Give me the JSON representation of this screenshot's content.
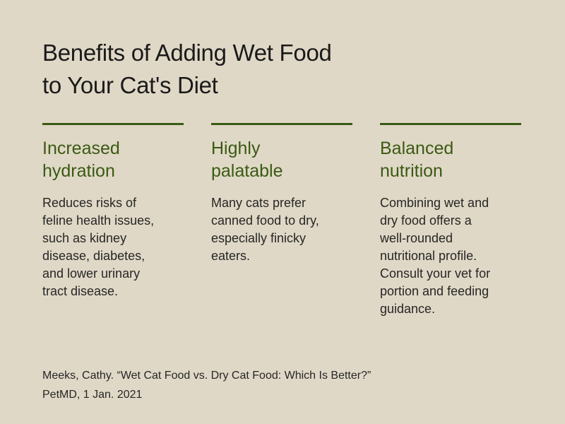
{
  "title": {
    "line1": "Benefits of Adding Wet Food",
    "line2": "to Your Cat's Diet"
  },
  "columns": [
    {
      "heading": [
        "Increased",
        "hydration"
      ],
      "body": [
        "Reduces risks of",
        "feline health issues,",
        "such as kidney",
        "disease, diabetes,",
        "and lower urinary",
        "tract disease."
      ]
    },
    {
      "heading": [
        "Highly",
        "palatable"
      ],
      "body": [
        "Many cats prefer",
        "canned food to dry,",
        "especially finicky",
        "eaters."
      ]
    },
    {
      "heading": [
        "Balanced",
        "nutrition"
      ],
      "body": [
        "Combining wet and",
        "dry food offers a",
        "well-rounded",
        "nutritional profile.",
        "Consult your vet for",
        "portion and feeding",
        "guidance."
      ]
    }
  ],
  "citation": {
    "line1": "Meeks, Cathy. “Wet Cat Food vs. Dry Cat Food: Which Is Better?”",
    "line2": "PetMD, 1 Jan. 2021"
  },
  "colors": {
    "background": "#e0d8c6",
    "accent": "#3a5a14",
    "text": "#1a1a1a"
  }
}
